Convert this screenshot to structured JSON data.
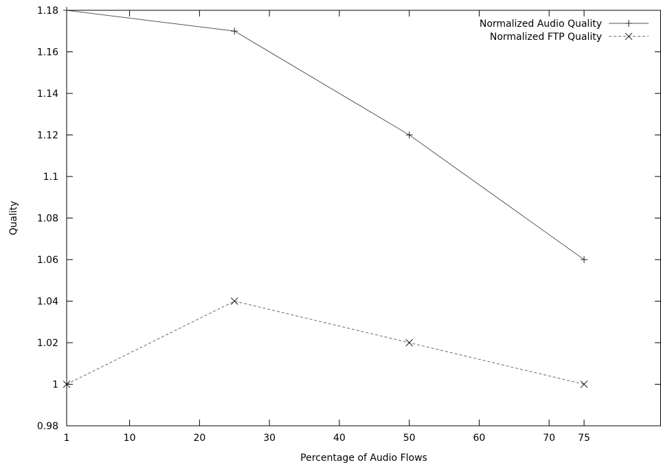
{
  "chart_data": {
    "type": "line",
    "title": "",
    "xlabel": "Percentage of Audio Flows",
    "ylabel": "Quality",
    "xlim": [
      1,
      86
    ],
    "ylim": [
      0.98,
      1.18
    ],
    "xticks": [
      1,
      10,
      20,
      30,
      40,
      50,
      60,
      70,
      75
    ],
    "xtick_labels": [
      "1",
      "10",
      "20",
      "30",
      "40",
      "50",
      "60",
      "70",
      "75"
    ],
    "yticks": [
      0.98,
      1,
      1.02,
      1.04,
      1.06,
      1.08,
      1.1,
      1.12,
      1.14,
      1.16,
      1.18
    ],
    "ytick_labels": [
      "0.98",
      "1",
      "1.02",
      "1.04",
      "1.06",
      "1.08",
      "1.1",
      "1.12",
      "1.14",
      "1.16",
      "1.18"
    ],
    "grid": false,
    "legend_position": "top-right",
    "series": [
      {
        "name": "Normalized Audio Quality",
        "x": [
          1,
          25,
          50,
          75
        ],
        "y": [
          1.18,
          1.17,
          1.12,
          1.06
        ],
        "marker": "plus",
        "line_style": "solid",
        "color": "#555555"
      },
      {
        "name": "Normalized FTP Quality",
        "x": [
          1,
          25,
          50,
          75
        ],
        "y": [
          1.0,
          1.04,
          1.02,
          1.0
        ],
        "marker": "cross",
        "line_style": "dashed",
        "color": "#666666"
      }
    ]
  }
}
